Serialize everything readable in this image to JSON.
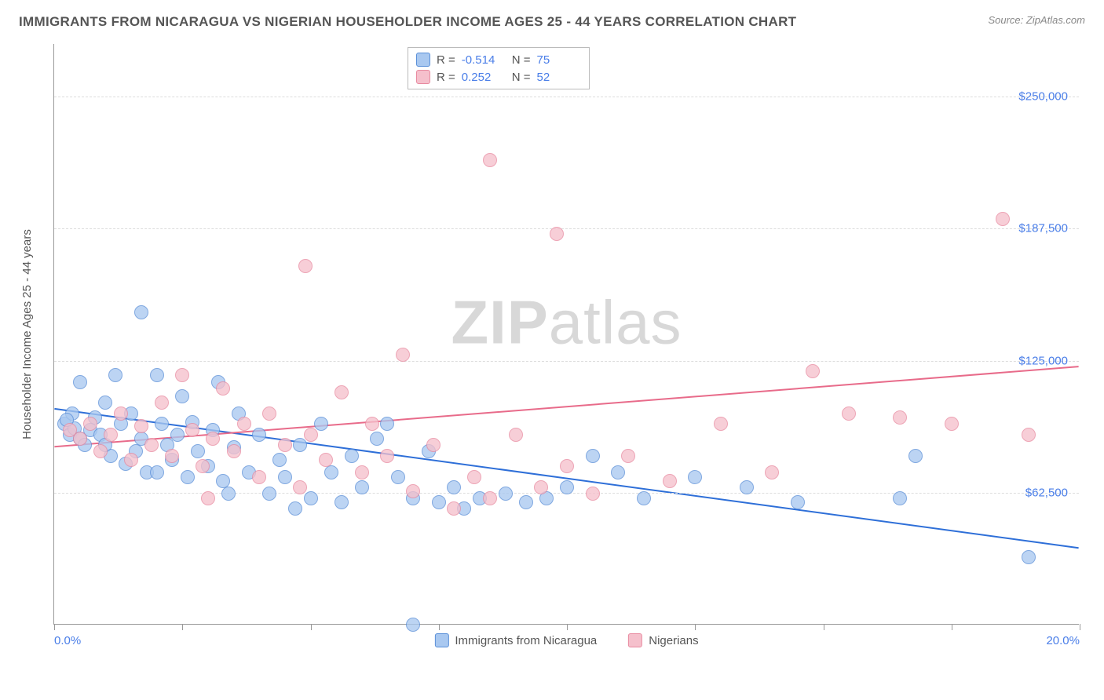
{
  "title": "IMMIGRANTS FROM NICARAGUA VS NIGERIAN HOUSEHOLDER INCOME AGES 25 - 44 YEARS CORRELATION CHART",
  "source_label": "Source: ",
  "source_value": "ZipAtlas.com",
  "y_axis_title": "Householder Income Ages 25 - 44 years",
  "watermark_bold": "ZIP",
  "watermark_rest": "atlas",
  "chart": {
    "type": "scatter",
    "xlim": [
      0,
      20
    ],
    "ylim": [
      0,
      275000
    ],
    "x_ticks": [
      0,
      2.5,
      5,
      7.5,
      10,
      12.5,
      15,
      17.5,
      20
    ],
    "x_tick_labels_shown": {
      "0": "0.0%",
      "20": "20.0%"
    },
    "y_gridlines": [
      62500,
      125000,
      187500,
      250000
    ],
    "y_tick_labels": {
      "62500": "$62,500",
      "125000": "$125,000",
      "187500": "$187,500",
      "250000": "$250,000"
    },
    "background_color": "#ffffff",
    "grid_color": "#dddddd",
    "axis_color": "#999999",
    "marker_radius": 9,
    "marker_stroke_width": 1.2,
    "marker_fill_opacity": 0.32,
    "trend_line_width": 2,
    "series": [
      {
        "name": "Immigrants from Nicaragua",
        "color_fill": "#a9c8f0",
        "color_stroke": "#5a8fd8",
        "trend_color": "#2e6fd8",
        "R": "-0.514",
        "N": "75",
        "trend": {
          "x1": 0,
          "y1": 102000,
          "x2": 20,
          "y2": 36000
        },
        "points": [
          [
            0.2,
            95000
          ],
          [
            0.3,
            90000
          ],
          [
            0.35,
            100000
          ],
          [
            0.4,
            93000
          ],
          [
            0.5,
            88000
          ],
          [
            0.25,
            97000
          ],
          [
            0.5,
            115000
          ],
          [
            0.6,
            85000
          ],
          [
            0.7,
            92000
          ],
          [
            0.8,
            98000
          ],
          [
            0.9,
            90000
          ],
          [
            1.0,
            105000
          ],
          [
            1.1,
            80000
          ],
          [
            1.2,
            118000
          ],
          [
            1.3,
            95000
          ],
          [
            1.4,
            76000
          ],
          [
            1.5,
            100000
          ],
          [
            1.6,
            82000
          ],
          [
            1.7,
            88000
          ],
          [
            1.8,
            72000
          ],
          [
            1.7,
            148000
          ],
          [
            2.0,
            118000
          ],
          [
            2.1,
            95000
          ],
          [
            2.2,
            85000
          ],
          [
            2.3,
            78000
          ],
          [
            2.4,
            90000
          ],
          [
            2.5,
            108000
          ],
          [
            2.6,
            70000
          ],
          [
            2.7,
            96000
          ],
          [
            2.8,
            82000
          ],
          [
            3.0,
            75000
          ],
          [
            3.1,
            92000
          ],
          [
            3.2,
            115000
          ],
          [
            3.3,
            68000
          ],
          [
            3.5,
            84000
          ],
          [
            3.6,
            100000
          ],
          [
            3.8,
            72000
          ],
          [
            4.0,
            90000
          ],
          [
            4.2,
            62000
          ],
          [
            4.4,
            78000
          ],
          [
            4.5,
            70000
          ],
          [
            4.7,
            55000
          ],
          [
            4.8,
            85000
          ],
          [
            5.0,
            60000
          ],
          [
            5.2,
            95000
          ],
          [
            5.4,
            72000
          ],
          [
            5.6,
            58000
          ],
          [
            5.8,
            80000
          ],
          [
            6.0,
            65000
          ],
          [
            6.3,
            88000
          ],
          [
            6.5,
            95000
          ],
          [
            6.7,
            70000
          ],
          [
            7.0,
            60000
          ],
          [
            7.3,
            82000
          ],
          [
            7.0,
            0
          ],
          [
            7.5,
            58000
          ],
          [
            7.8,
            65000
          ],
          [
            8.0,
            55000
          ],
          [
            8.3,
            60000
          ],
          [
            8.8,
            62000
          ],
          [
            9.2,
            58000
          ],
          [
            9.6,
            60000
          ],
          [
            10.0,
            65000
          ],
          [
            10.5,
            80000
          ],
          [
            11.0,
            72000
          ],
          [
            11.5,
            60000
          ],
          [
            12.5,
            70000
          ],
          [
            13.5,
            65000
          ],
          [
            14.5,
            58000
          ],
          [
            16.5,
            60000
          ],
          [
            16.8,
            80000
          ],
          [
            19.0,
            32000
          ],
          [
            1.0,
            85000
          ],
          [
            2.0,
            72000
          ],
          [
            3.4,
            62000
          ]
        ]
      },
      {
        "name": "Nigerians",
        "color_fill": "#f5c0cc",
        "color_stroke": "#e88aa0",
        "trend_color": "#e86b8a",
        "R": "0.252",
        "N": "52",
        "trend": {
          "x1": 0,
          "y1": 84000,
          "x2": 20,
          "y2": 122000
        },
        "points": [
          [
            0.3,
            92000
          ],
          [
            0.5,
            88000
          ],
          [
            0.7,
            95000
          ],
          [
            0.9,
            82000
          ],
          [
            1.1,
            90000
          ],
          [
            1.3,
            100000
          ],
          [
            1.5,
            78000
          ],
          [
            1.7,
            94000
          ],
          [
            1.9,
            85000
          ],
          [
            2.1,
            105000
          ],
          [
            2.3,
            80000
          ],
          [
            2.5,
            118000
          ],
          [
            2.7,
            92000
          ],
          [
            2.9,
            75000
          ],
          [
            3.1,
            88000
          ],
          [
            3.3,
            112000
          ],
          [
            3.5,
            82000
          ],
          [
            3.7,
            95000
          ],
          [
            4.0,
            70000
          ],
          [
            4.2,
            100000
          ],
          [
            4.5,
            85000
          ],
          [
            4.8,
            65000
          ],
          [
            5.0,
            90000
          ],
          [
            5.3,
            78000
          ],
          [
            5.6,
            110000
          ],
          [
            4.9,
            170000
          ],
          [
            6.0,
            72000
          ],
          [
            6.2,
            95000
          ],
          [
            6.5,
            80000
          ],
          [
            6.8,
            128000
          ],
          [
            7.0,
            63000
          ],
          [
            7.4,
            85000
          ],
          [
            7.8,
            55000
          ],
          [
            8.2,
            70000
          ],
          [
            8.5,
            60000
          ],
          [
            8.5,
            220000
          ],
          [
            9.0,
            90000
          ],
          [
            9.5,
            65000
          ],
          [
            10.0,
            75000
          ],
          [
            9.8,
            185000
          ],
          [
            10.5,
            62000
          ],
          [
            11.2,
            80000
          ],
          [
            12.0,
            68000
          ],
          [
            13.0,
            95000
          ],
          [
            14.0,
            72000
          ],
          [
            14.8,
            120000
          ],
          [
            15.5,
            100000
          ],
          [
            16.5,
            98000
          ],
          [
            17.5,
            95000
          ],
          [
            19.0,
            90000
          ],
          [
            18.5,
            192000
          ],
          [
            3.0,
            60000
          ]
        ]
      }
    ]
  },
  "stats_box": {
    "R_label": "R =",
    "N_label": "N ="
  },
  "bottom_legend": [
    "Immigrants from Nicaragua",
    "Nigerians"
  ]
}
